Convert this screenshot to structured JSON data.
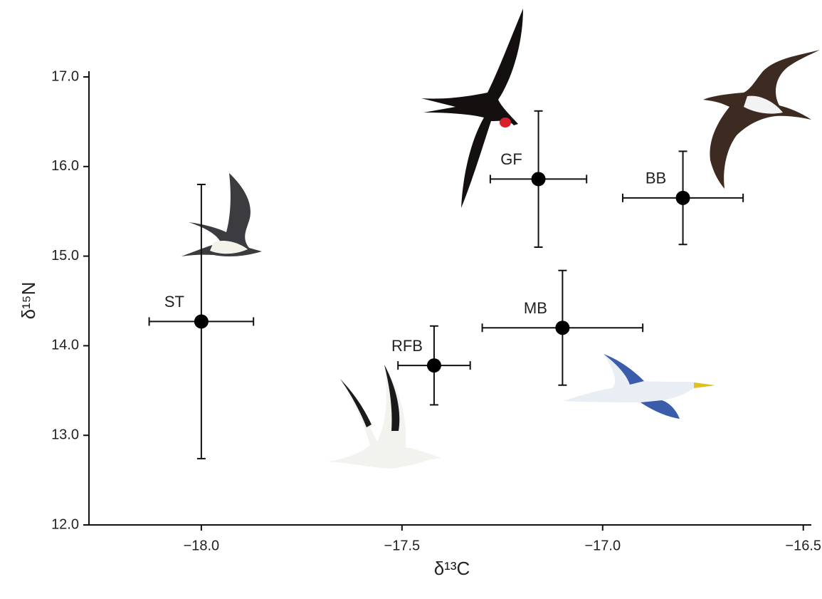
{
  "chart_data": {
    "type": "scatter",
    "xlabel": "δ¹³C",
    "ylabel": "δ¹⁵N",
    "labels": [
      "ST",
      "RFB",
      "MB",
      "GF",
      "BB"
    ],
    "x": [
      -18.0,
      -17.42,
      -17.1,
      -17.16,
      -16.8
    ],
    "y": [
      14.27,
      13.78,
      14.2,
      15.86,
      15.65
    ],
    "xerr": [
      0.13,
      0.09,
      0.2,
      0.12,
      0.15
    ],
    "yerr": [
      1.53,
      0.44,
      0.64,
      0.76,
      0.52
    ],
    "color": "#000000",
    "xlim": [
      -18.28,
      -16.48
    ],
    "ylim": [
      12.0,
      17.0
    ],
    "xticks": [
      {
        "value": -18.0,
        "label": "−18.0"
      },
      {
        "value": -17.5,
        "label": "−17.5"
      },
      {
        "value": -17.0,
        "label": "−17.0"
      },
      {
        "value": -16.5,
        "label": "−16.5"
      }
    ],
    "yticks": [
      {
        "value": 12.0,
        "label": "12.0"
      },
      {
        "value": 13.0,
        "label": "13.0"
      },
      {
        "value": 14.0,
        "label": "14.0"
      },
      {
        "value": 15.0,
        "label": "15.0"
      },
      {
        "value": 16.0,
        "label": "16.0"
      },
      {
        "value": 17.0,
        "label": "17.0"
      }
    ]
  }
}
